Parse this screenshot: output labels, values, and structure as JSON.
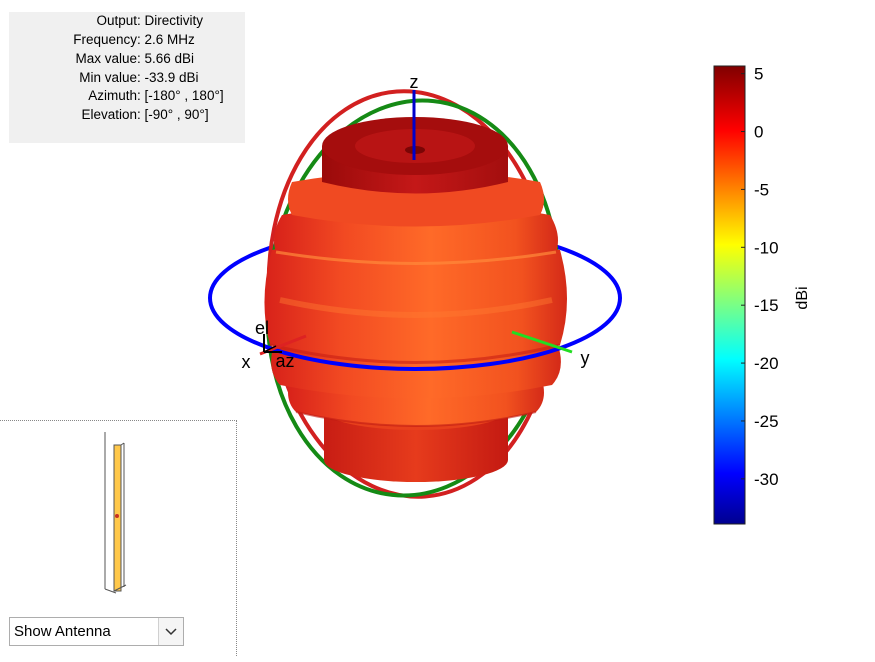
{
  "info": {
    "rows": [
      {
        "key": "Output",
        "value": ": Directivity"
      },
      {
        "key": "Frequency",
        "value": ": 2.6 MHz"
      },
      {
        "key": "Max value",
        "value": ": 5.66 dBi"
      },
      {
        "key": "Min value",
        "value": ": -33.9 dBi"
      },
      {
        "key": "Azimuth",
        "value": ": [-180° , 180°]"
      },
      {
        "key": "Elevation",
        "value": ": [-90° , 90°]"
      }
    ]
  },
  "axes": {
    "x": "x",
    "y": "y",
    "z": "z",
    "el": "el",
    "az": "az"
  },
  "colorbar": {
    "label": "dBi",
    "min": -33.9,
    "max": 5.66,
    "ticks": [
      "5",
      "0",
      "-5",
      "-10",
      "-15",
      "-20",
      "-25",
      "-30"
    ],
    "colormap": "jet"
  },
  "colors": {
    "azimuth_ring": "#0000ff",
    "elevation_ring_xz": "#d22020",
    "elevation_ring_yz": "#158a15",
    "pattern_body": "#e8361a"
  },
  "antenna_selector": {
    "selected": "Show Antenna"
  }
}
